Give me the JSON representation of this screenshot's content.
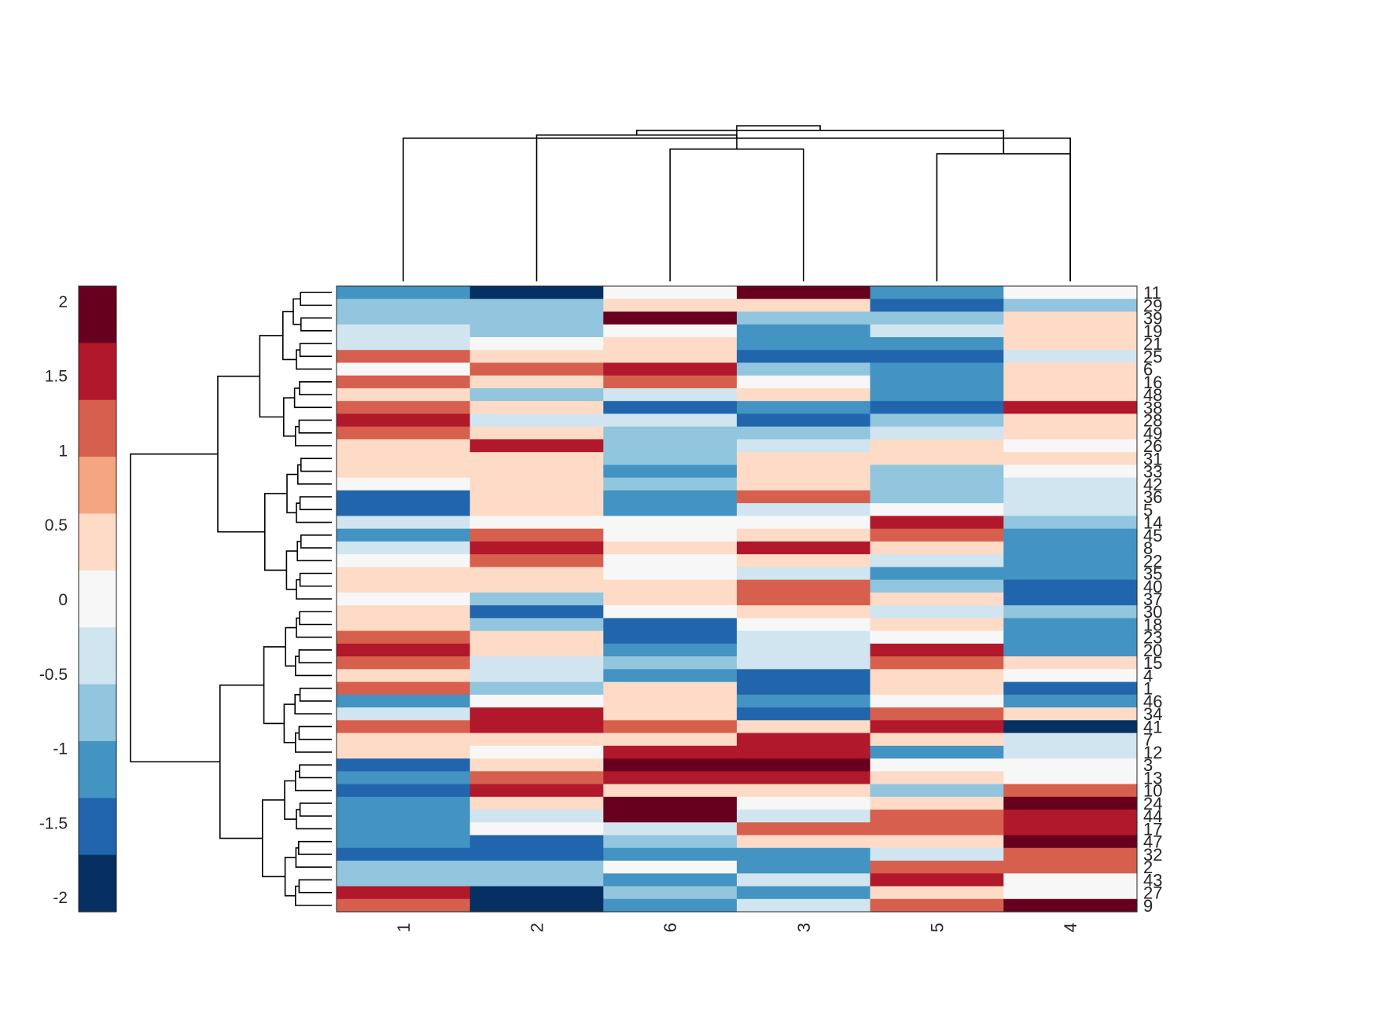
{
  "chart_data": {
    "type": "heatmap",
    "title": "",
    "xlabel": "",
    "ylabel": "",
    "column_order": [
      "1",
      "2",
      "6",
      "3",
      "5",
      "4"
    ],
    "row_order": [
      "11",
      "29",
      "39",
      "19",
      "21",
      "25",
      "6",
      "16",
      "48",
      "38",
      "28",
      "49",
      "26",
      "31",
      "33",
      "42",
      "36",
      "5",
      "14",
      "45",
      "8",
      "22",
      "35",
      "40",
      "37",
      "30",
      "18",
      "23",
      "20",
      "15",
      "4",
      "1",
      "46",
      "34",
      "41",
      "7",
      "12",
      "3",
      "13",
      "10",
      "24",
      "44",
      "17",
      "47",
      "32",
      "2",
      "43",
      "27",
      "9"
    ],
    "values": [
      [
        -1.0,
        -2.0,
        0.0,
        2.0,
        -1.0,
        0.0
      ],
      [
        -0.75,
        -0.75,
        0.5,
        0.25,
        -1.5,
        -0.75
      ],
      [
        -0.75,
        -0.75,
        2.0,
        -0.75,
        -0.75,
        0.25
      ],
      [
        -0.25,
        -0.75,
        0.0,
        -1.0,
        -0.25,
        0.5
      ],
      [
        -0.25,
        0.0,
        0.25,
        -1.0,
        -1.0,
        0.25
      ],
      [
        1.0,
        0.25,
        0.5,
        -1.5,
        -1.5,
        -0.25
      ],
      [
        0.0,
        1.0,
        1.5,
        -0.75,
        -1.0,
        0.25
      ],
      [
        1.0,
        0.25,
        1.0,
        0.0,
        -1.0,
        0.25
      ],
      [
        0.5,
        -0.75,
        -0.25,
        0.5,
        -1.0,
        0.25
      ],
      [
        1.0,
        0.5,
        -1.5,
        -1.0,
        -1.5,
        1.5
      ],
      [
        1.5,
        -0.25,
        -0.25,
        -1.5,
        -0.75,
        0.5
      ],
      [
        1.0,
        0.25,
        -0.75,
        -0.75,
        -0.25,
        0.25
      ],
      [
        0.5,
        1.5,
        -0.75,
        -0.25,
        0.25,
        0.0
      ],
      [
        0.25,
        0.5,
        -0.75,
        0.5,
        0.25,
        0.25
      ],
      [
        0.5,
        0.25,
        -1.0,
        0.5,
        -0.75,
        0.0
      ],
      [
        0.0,
        0.5,
        -0.75,
        0.5,
        -0.75,
        -0.25
      ],
      [
        -1.5,
        0.5,
        -1.0,
        1.0,
        -0.75,
        -0.25
      ],
      [
        -1.5,
        0.25,
        -1.0,
        -0.25,
        0.0,
        -0.25
      ],
      [
        -0.25,
        0.0,
        0.0,
        0.0,
        1.5,
        -0.75
      ],
      [
        -1.0,
        1.0,
        0.0,
        0.25,
        1.0,
        -1.0
      ],
      [
        -0.25,
        1.5,
        0.25,
        1.5,
        0.25,
        -1.0
      ],
      [
        0.0,
        1.0,
        0.0,
        0.25,
        -0.25,
        -1.0
      ],
      [
        0.5,
        0.5,
        0.0,
        -0.25,
        -1.0,
        -1.0
      ],
      [
        0.25,
        0.25,
        0.25,
        1.0,
        -0.75,
        -1.5
      ],
      [
        0.0,
        -0.75,
        0.5,
        1.0,
        0.5,
        -1.5
      ],
      [
        0.25,
        -1.5,
        0.0,
        0.5,
        -0.25,
        -0.75
      ],
      [
        0.25,
        -0.75,
        -1.5,
        0.0,
        0.25,
        -1.0
      ],
      [
        1.0,
        0.5,
        -1.5,
        -0.25,
        0.0,
        -1.0
      ],
      [
        1.5,
        0.25,
        -1.0,
        -0.25,
        1.5,
        -1.0
      ],
      [
        1.0,
        -0.25,
        -0.75,
        -0.25,
        1.0,
        0.5
      ],
      [
        0.5,
        -0.25,
        -1.0,
        -1.5,
        0.5,
        0.0
      ],
      [
        1.0,
        -0.75,
        0.25,
        -1.5,
        0.25,
        -1.5
      ],
      [
        -1.0,
        0.0,
        0.25,
        -1.0,
        0.0,
        -1.0
      ],
      [
        -0.25,
        1.5,
        0.25,
        -1.5,
        1.0,
        0.25
      ],
      [
        1.0,
        1.5,
        1.0,
        0.25,
        1.5,
        -2.0
      ],
      [
        0.5,
        0.5,
        0.5,
        1.5,
        0.5,
        -0.25
      ],
      [
        0.5,
        0.0,
        1.5,
        1.5,
        -1.0,
        -0.25
      ],
      [
        -1.5,
        0.25,
        2.0,
        2.0,
        0.0,
        0.0
      ],
      [
        -1.0,
        1.0,
        1.5,
        1.5,
        0.5,
        0.0
      ],
      [
        -1.5,
        1.5,
        0.25,
        0.25,
        -0.75,
        1.0
      ],
      [
        -1.0,
        0.25,
        2.0,
        0.0,
        0.25,
        2.0
      ],
      [
        -1.0,
        -0.25,
        2.0,
        -0.25,
        1.0,
        1.5
      ],
      [
        -1.0,
        0.0,
        -0.25,
        1.0,
        1.0,
        1.5
      ],
      [
        -1.0,
        -1.5,
        -0.75,
        0.5,
        0.25,
        2.0
      ],
      [
        -1.5,
        -1.5,
        -1.0,
        -1.0,
        -0.25,
        1.0
      ],
      [
        -0.75,
        -0.75,
        0.0,
        -1.0,
        1.0,
        1.0
      ],
      [
        -0.75,
        -0.75,
        -1.0,
        -0.25,
        1.5,
        0.0
      ],
      [
        1.5,
        -2.0,
        -0.75,
        -1.0,
        0.25,
        0.0
      ],
      [
        1.0,
        -2.0,
        -1.0,
        -0.25,
        1.0,
        2.0
      ]
    ],
    "colorbar": {
      "min": -2.1,
      "max": 2.1,
      "ticks": [
        2,
        1.5,
        1,
        0.5,
        0,
        -0.5,
        -1,
        -1.5,
        -2
      ],
      "tick_labels": [
        "2",
        "1.5",
        "1",
        "0.5",
        "0",
        "-0.5",
        "-1",
        "-1.5",
        "-2"
      ],
      "colors": [
        "#67001f",
        "#b2182b",
        "#d6604d",
        "#f4a582",
        "#fddbc7",
        "#f7f7f7",
        "#d1e5f0",
        "#92c5de",
        "#4393c3",
        "#2166ac",
        "#053061"
      ]
    },
    "column_dendrogram": [
      [
        0,
        5
      ],
      [
        2,
        3
      ],
      [
        1,
        7
      ],
      [
        4,
        5
      ],
      [
        8,
        9
      ],
      [
        6,
        10
      ]
    ],
    "row_dendrogram": [
      [
        0,
        0.11
      ],
      [
        2,
        3,
        0.1
      ],
      [
        4,
        5,
        0.12
      ],
      [
        6,
        7,
        0.13
      ],
      [
        8,
        9,
        0.16
      ],
      [
        10,
        11,
        0.14
      ],
      [
        12,
        13,
        0.1
      ],
      [
        14,
        15,
        0.09
      ],
      [
        16,
        17,
        0.12
      ],
      [
        18,
        19,
        0.1
      ],
      [
        20,
        21,
        0.1
      ],
      [
        22,
        23,
        0.12
      ],
      [
        24,
        25,
        0.13
      ],
      [
        26,
        27,
        0.12
      ],
      [
        28,
        29,
        0.14
      ],
      [
        30,
        31,
        0.12
      ],
      [
        32,
        33,
        0.15
      ],
      [
        34,
        35,
        0.14
      ],
      [
        36,
        37,
        0.13
      ],
      [
        38,
        39,
        0.14
      ],
      [
        40,
        41,
        0.12
      ],
      [
        42,
        43,
        0.15
      ],
      [
        44,
        45,
        0.13
      ],
      [
        46,
        47,
        0.14
      ],
      [
        48,
        0.17
      ]
    ]
  }
}
